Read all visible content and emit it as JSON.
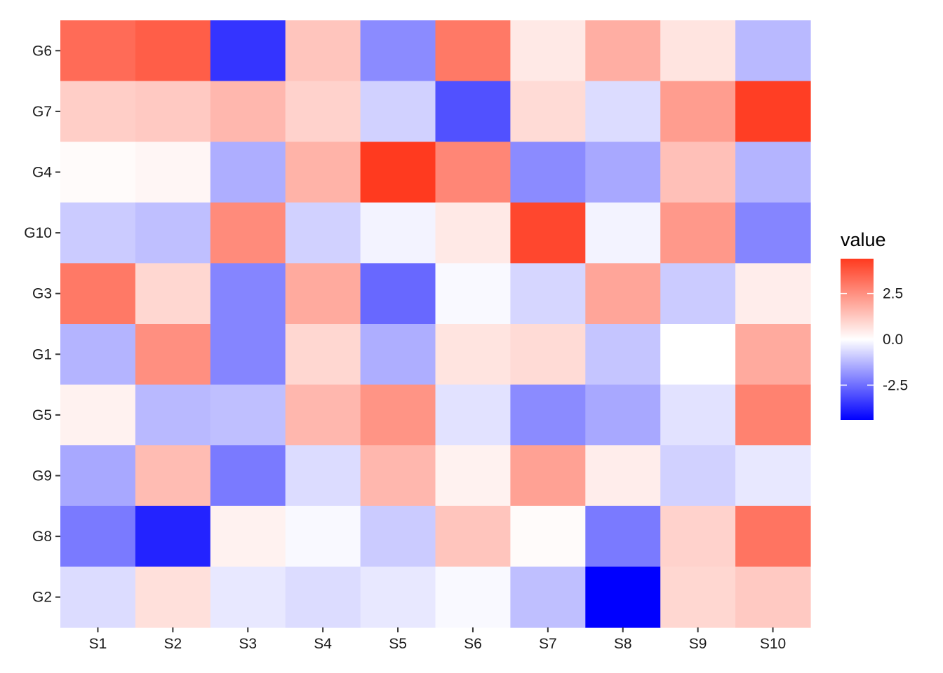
{
  "chart_data": {
    "type": "heatmap",
    "title": "",
    "xlabel": "",
    "ylabel": "",
    "x_categories": [
      "S1",
      "S2",
      "S3",
      "S4",
      "S5",
      "S6",
      "S7",
      "S8",
      "S9",
      "S10"
    ],
    "y_categories_top_to_bottom": [
      "G6",
      "G7",
      "G4",
      "G10",
      "G3",
      "G1",
      "G5",
      "G9",
      "G8",
      "G2"
    ],
    "values": [
      [
        3.3,
        3.6,
        -3.5,
        1.3,
        -2.0,
        3.0,
        0.5,
        1.8,
        0.6,
        -1.2
      ],
      [
        1.1,
        1.2,
        1.6,
        1.0,
        -0.8,
        -3.0,
        0.8,
        -0.6,
        2.2,
        4.3
      ],
      [
        0.1,
        0.2,
        -1.4,
        1.7,
        4.4,
        2.7,
        -2.0,
        -1.5,
        1.4,
        -1.3
      ],
      [
        -0.9,
        -1.1,
        2.6,
        -0.8,
        -0.2,
        0.5,
        4.1,
        -0.2,
        2.3,
        -2.1
      ],
      [
        3.0,
        0.9,
        -2.1,
        1.9,
        -2.6,
        -0.1,
        -0.7,
        2.0,
        -0.9,
        0.4
      ],
      [
        -1.3,
        2.5,
        -2.1,
        0.9,
        -1.4,
        0.6,
        0.8,
        -1.0,
        0.0,
        1.9
      ],
      [
        0.3,
        -1.2,
        -1.1,
        1.6,
        2.4,
        -0.5,
        -2.0,
        -1.5,
        -0.5,
        2.8
      ],
      [
        -1.5,
        1.5,
        -2.3,
        -0.6,
        1.6,
        0.3,
        2.1,
        0.4,
        -0.8,
        -0.4
      ],
      [
        -2.3,
        -3.8,
        0.3,
        -0.1,
        -0.9,
        1.3,
        0.1,
        -2.3,
        1.0,
        3.1
      ],
      [
        -0.6,
        0.7,
        -0.4,
        -0.6,
        -0.4,
        -0.1,
        -1.1,
        -4.4,
        0.9,
        1.2
      ]
    ],
    "color_scale": {
      "low": "#0000ff",
      "mid": "#ffffff",
      "high": "#ff3a1f",
      "limits": [
        -4.4,
        4.4
      ],
      "midpoint": 0
    },
    "legend": {
      "title": "value",
      "breaks": [
        2.5,
        0.0,
        -2.5
      ],
      "labels": [
        "2.5",
        "0.0",
        "-2.5"
      ],
      "placement": "right"
    },
    "grid": false
  }
}
